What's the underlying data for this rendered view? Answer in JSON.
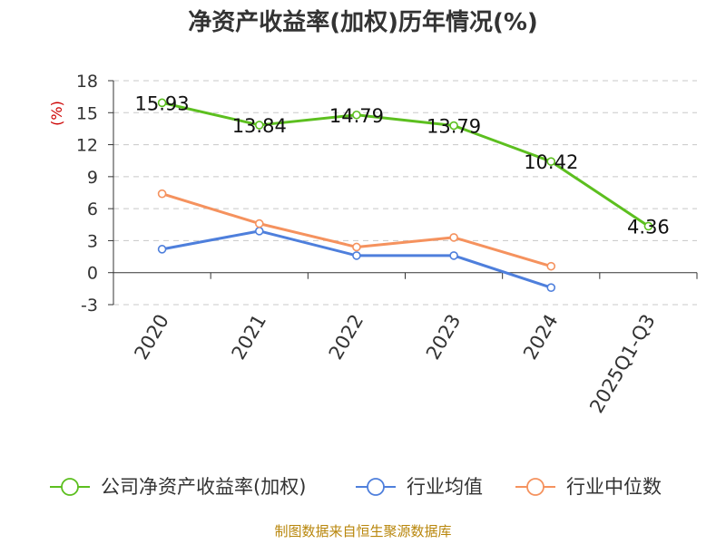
{
  "chart_data": {
    "type": "line",
    "title": "净资产收益率(加权)历年情况(%)",
    "ylabel": "(%)",
    "xlabel": "",
    "categories": [
      "2020",
      "2021",
      "2022",
      "2023",
      "2024",
      "2025Q1-Q3"
    ],
    "yticks": [
      "-3",
      "0",
      "3",
      "6",
      "9",
      "12",
      "15",
      "18"
    ],
    "ylim": [
      -3,
      18
    ],
    "grid": true,
    "series": [
      {
        "name": "公司净资产收益率(加权)",
        "color": "#5cbf1f",
        "values": [
          15.93,
          13.84,
          14.79,
          13.79,
          10.42,
          4.36
        ],
        "labels": [
          "15.93",
          "13.84",
          "14.79",
          "13.79",
          "10.42",
          "4.36"
        ]
      },
      {
        "name": "行业均值",
        "color": "#4e7fdc",
        "values": [
          2.2,
          3.9,
          1.6,
          1.6,
          -1.4,
          null
        ]
      },
      {
        "name": "行业中位数",
        "color": "#f5925e",
        "values": [
          7.4,
          4.6,
          2.4,
          3.3,
          0.6,
          null
        ]
      }
    ],
    "legend_position": "bottom",
    "source": "制图数据来自恒生聚源数据库"
  }
}
